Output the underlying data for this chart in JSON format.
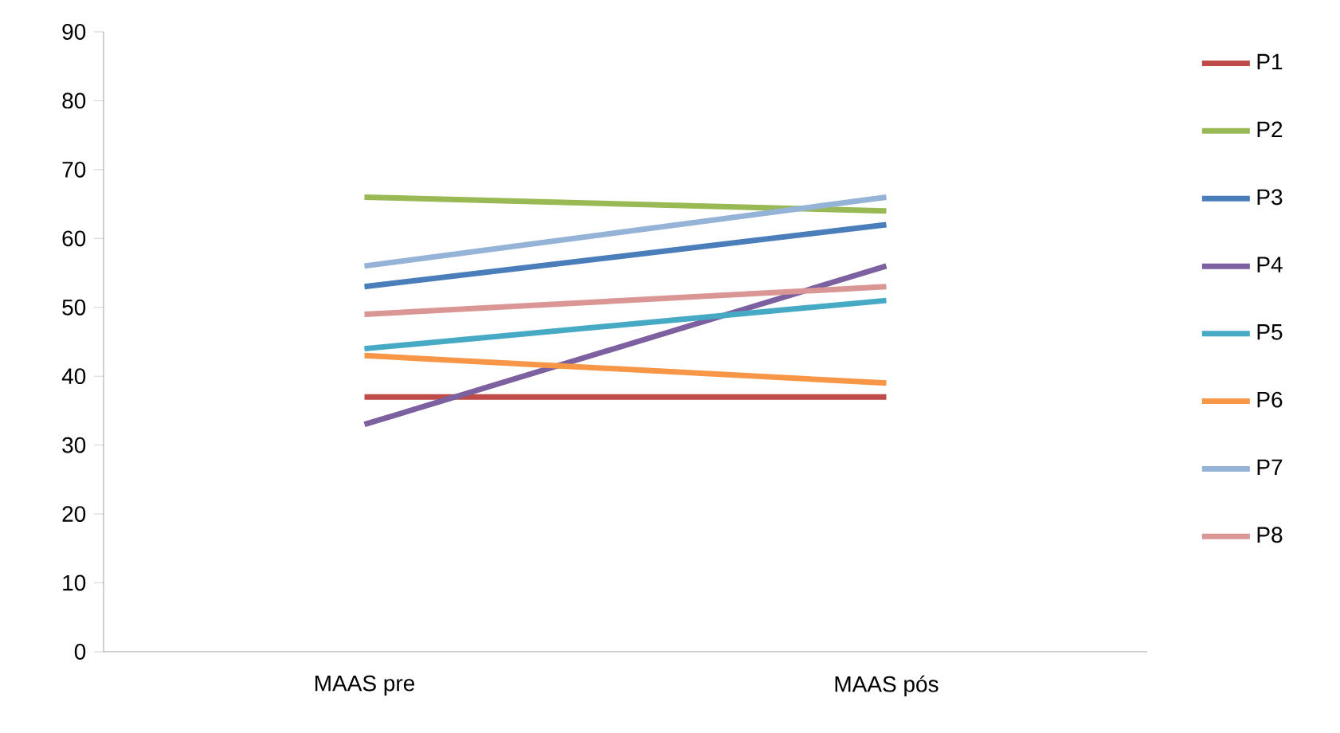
{
  "chart_data": {
    "type": "line",
    "categories": [
      "MAAS pre",
      "MAAS pós"
    ],
    "series": [
      {
        "name": "P1",
        "color": "#be4b48",
        "values": [
          37,
          37
        ]
      },
      {
        "name": "P2",
        "color": "#98b954",
        "values": [
          66,
          64
        ]
      },
      {
        "name": "P3",
        "color": "#4a7ebb",
        "values": [
          53,
          62
        ]
      },
      {
        "name": "P4",
        "color": "#7d60a0",
        "values": [
          33,
          56
        ]
      },
      {
        "name": "P5",
        "color": "#46aac5",
        "values": [
          44,
          51
        ]
      },
      {
        "name": "P6",
        "color": "#f79646",
        "values": [
          43,
          39
        ]
      },
      {
        "name": "P7",
        "color": "#95b3d7",
        "values": [
          56,
          66
        ]
      },
      {
        "name": "P8",
        "color": "#d99694",
        "values": [
          49,
          53
        ]
      }
    ],
    "ylim": [
      0,
      90
    ],
    "yticks": [
      0,
      10,
      20,
      30,
      40,
      50,
      60,
      70,
      80,
      90
    ],
    "grid": false,
    "legend": "right",
    "marker": "none",
    "line_style": "solid"
  }
}
